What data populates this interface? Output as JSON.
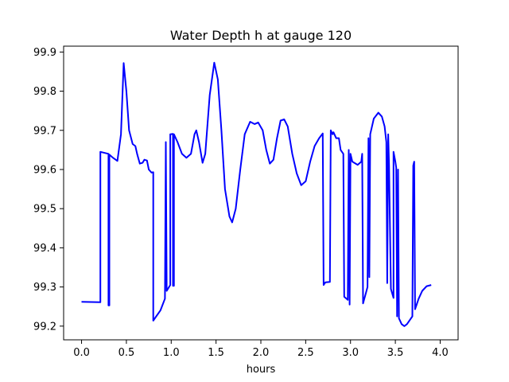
{
  "chart_data": {
    "type": "line",
    "title": "Water Depth h at gauge 120",
    "xlabel": "hours",
    "ylabel": "",
    "xlim": [
      -0.2,
      4.2
    ],
    "ylim": [
      99.165,
      99.915
    ],
    "xticks": [
      0.0,
      0.5,
      1.0,
      1.5,
      2.0,
      2.5,
      3.0,
      3.5,
      4.0
    ],
    "xtick_labels": [
      "0.0",
      "0.5",
      "1.0",
      "1.5",
      "2.0",
      "2.5",
      "3.0",
      "3.5",
      "4.0"
    ],
    "yticks": [
      99.2,
      99.3,
      99.4,
      99.5,
      99.6,
      99.7,
      99.8,
      99.9
    ],
    "ytick_labels": [
      "99.2",
      "99.3",
      "99.4",
      "99.5",
      "99.6",
      "99.7",
      "99.8",
      "99.9"
    ],
    "grid": false,
    "legend": "none",
    "series": [
      {
        "color": "#0000ff",
        "points": [
          [
            0.0,
            99.262
          ],
          [
            0.21,
            99.261
          ],
          [
            0.21,
            99.645
          ],
          [
            0.3,
            99.64
          ],
          [
            0.3,
            99.253
          ],
          [
            0.31,
            99.253
          ],
          [
            0.31,
            99.638
          ],
          [
            0.35,
            99.63
          ],
          [
            0.4,
            99.622
          ],
          [
            0.44,
            99.69
          ],
          [
            0.47,
            99.872
          ],
          [
            0.5,
            99.8
          ],
          [
            0.53,
            99.7
          ],
          [
            0.57,
            99.665
          ],
          [
            0.6,
            99.66
          ],
          [
            0.62,
            99.64
          ],
          [
            0.65,
            99.615
          ],
          [
            0.68,
            99.617
          ],
          [
            0.7,
            99.625
          ],
          [
            0.73,
            99.623
          ],
          [
            0.75,
            99.6
          ],
          [
            0.78,
            99.592
          ],
          [
            0.8,
            99.593
          ],
          [
            0.8,
            99.214
          ],
          [
            0.83,
            99.224
          ],
          [
            0.88,
            99.24
          ],
          [
            0.93,
            99.27
          ],
          [
            0.94,
            99.67
          ],
          [
            0.95,
            99.29
          ],
          [
            0.99,
            99.305
          ],
          [
            0.99,
            99.69
          ],
          [
            1.02,
            99.691
          ],
          [
            1.02,
            99.303
          ],
          [
            1.03,
            99.303
          ],
          [
            1.03,
            99.69
          ],
          [
            1.07,
            99.67
          ],
          [
            1.12,
            99.64
          ],
          [
            1.17,
            99.63
          ],
          [
            1.22,
            99.64
          ],
          [
            1.26,
            99.69
          ],
          [
            1.28,
            99.7
          ],
          [
            1.31,
            99.67
          ],
          [
            1.35,
            99.617
          ],
          [
            1.38,
            99.64
          ],
          [
            1.43,
            99.79
          ],
          [
            1.48,
            99.873
          ],
          [
            1.52,
            99.83
          ],
          [
            1.56,
            99.7
          ],
          [
            1.6,
            99.55
          ],
          [
            1.65,
            99.48
          ],
          [
            1.68,
            99.465
          ],
          [
            1.72,
            99.5
          ],
          [
            1.77,
            99.6
          ],
          [
            1.82,
            99.69
          ],
          [
            1.88,
            99.722
          ],
          [
            1.93,
            99.716
          ],
          [
            1.97,
            99.72
          ],
          [
            2.02,
            99.7
          ],
          [
            2.06,
            99.65
          ],
          [
            2.1,
            99.615
          ],
          [
            2.14,
            99.625
          ],
          [
            2.18,
            99.68
          ],
          [
            2.22,
            99.725
          ],
          [
            2.26,
            99.728
          ],
          [
            2.3,
            99.71
          ],
          [
            2.35,
            99.64
          ],
          [
            2.4,
            99.59
          ],
          [
            2.45,
            99.56
          ],
          [
            2.5,
            99.57
          ],
          [
            2.55,
            99.62
          ],
          [
            2.6,
            99.66
          ],
          [
            2.65,
            99.68
          ],
          [
            2.69,
            99.692
          ],
          [
            2.7,
            99.305
          ],
          [
            2.72,
            99.312
          ],
          [
            2.77,
            99.313
          ],
          [
            2.78,
            99.7
          ],
          [
            2.8,
            99.69
          ],
          [
            2.81,
            99.695
          ],
          [
            2.84,
            99.68
          ],
          [
            2.87,
            99.68
          ],
          [
            2.89,
            99.65
          ],
          [
            2.92,
            99.64
          ],
          [
            2.93,
            99.275
          ],
          [
            2.97,
            99.267
          ],
          [
            2.98,
            99.65
          ],
          [
            2.99,
            99.255
          ],
          [
            3.0,
            99.64
          ],
          [
            3.02,
            99.62
          ],
          [
            3.08,
            99.612
          ],
          [
            3.12,
            99.62
          ],
          [
            3.13,
            99.64
          ],
          [
            3.14,
            99.258
          ],
          [
            3.17,
            99.283
          ],
          [
            3.19,
            99.3
          ],
          [
            3.2,
            99.68
          ],
          [
            3.21,
            99.325
          ],
          [
            3.22,
            99.69
          ],
          [
            3.26,
            99.73
          ],
          [
            3.31,
            99.745
          ],
          [
            3.35,
            99.735
          ],
          [
            3.38,
            99.71
          ],
          [
            3.4,
            99.67
          ],
          [
            3.41,
            99.31
          ],
          [
            3.42,
            99.69
          ],
          [
            3.43,
            99.61
          ],
          [
            3.45,
            99.295
          ],
          [
            3.48,
            99.272
          ],
          [
            3.48,
            99.645
          ],
          [
            3.5,
            99.62
          ],
          [
            3.51,
            99.605
          ],
          [
            3.52,
            99.225
          ],
          [
            3.53,
            99.6
          ],
          [
            3.54,
            99.22
          ],
          [
            3.57,
            99.205
          ],
          [
            3.6,
            99.2
          ],
          [
            3.63,
            99.205
          ],
          [
            3.66,
            99.215
          ],
          [
            3.69,
            99.225
          ],
          [
            3.7,
            99.61
          ],
          [
            3.71,
            99.62
          ],
          [
            3.72,
            99.243
          ],
          [
            3.76,
            99.27
          ],
          [
            3.8,
            99.29
          ],
          [
            3.85,
            99.302
          ],
          [
            3.9,
            99.305
          ]
        ]
      }
    ]
  }
}
